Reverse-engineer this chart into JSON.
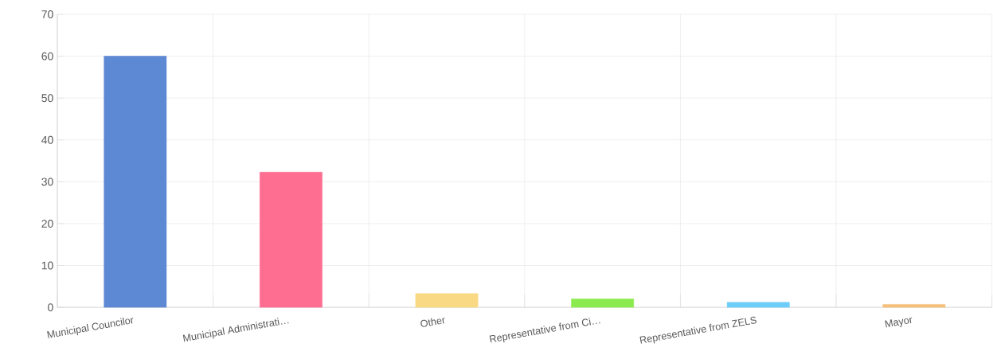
{
  "chart_data": {
    "type": "bar",
    "categories": [
      "Municipal Councilor",
      "Municipal Administrati…",
      "Other",
      "Representative from Ci…",
      "Representative from ZELS",
      "Mayor"
    ],
    "values": [
      60,
      32.3,
      3.3,
      2.0,
      1.2,
      0.7
    ],
    "colors": [
      "#5d88d3",
      "#fe6e91",
      "#f9d984",
      "#8bea4e",
      "#6dcdf8",
      "#f6c07a"
    ],
    "ylim": [
      0,
      70
    ],
    "yticks": [
      0,
      10,
      20,
      30,
      40,
      50,
      60,
      70
    ],
    "grid": true
  }
}
